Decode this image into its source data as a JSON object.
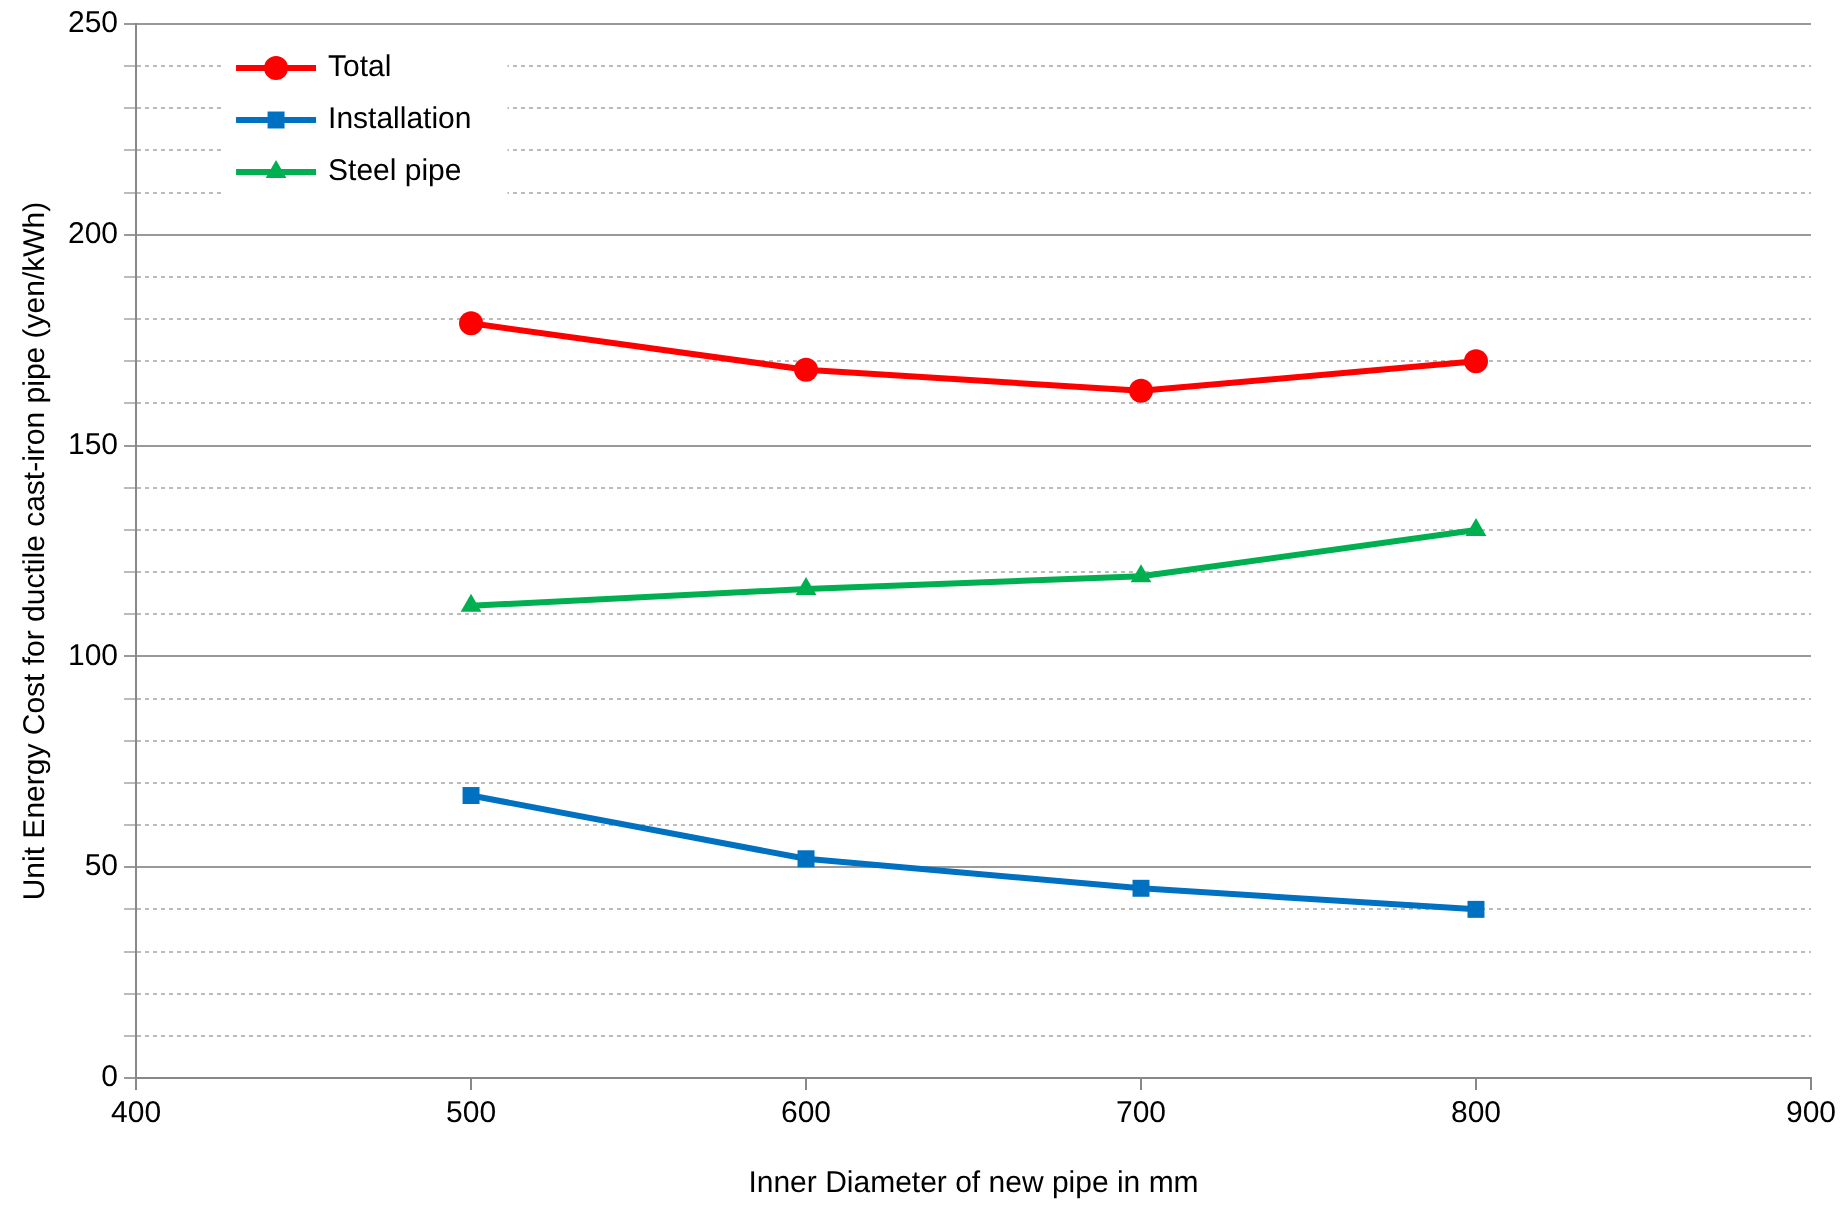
{
  "chart_data": {
    "type": "line",
    "xlabel": "Inner Diameter of new pipe in mm",
    "ylabel": "Unit Energy Cost for ductile cast-iron pipe (yen/kWh)",
    "x": [
      500,
      600,
      700,
      800
    ],
    "series": [
      {
        "name": "Total",
        "color": "#ff0000",
        "marker": "circle",
        "values": [
          179,
          168,
          163,
          170
        ]
      },
      {
        "name": "Installation",
        "color": "#0070c0",
        "marker": "square",
        "values": [
          67,
          52,
          45,
          40
        ]
      },
      {
        "name": "Steel pipe",
        "color": "#00b050",
        "marker": "triangle",
        "values": [
          112,
          116,
          119,
          130
        ]
      }
    ],
    "xlim": [
      400,
      900
    ],
    "xticks": [
      400,
      500,
      600,
      700,
      800,
      900
    ],
    "ylim": [
      0,
      250
    ],
    "yticks": [
      0,
      {
        "value": 10,
        "label": null
      },
      {
        "value": 20,
        "label": null
      },
      {
        "value": 30,
        "label": null
      },
      {
        "value": 40,
        "label": null
      },
      50,
      {
        "value": 60,
        "label": null
      },
      {
        "value": 70,
        "label": null
      },
      {
        "value": 80,
        "label": null
      },
      {
        "value": 90,
        "label": null
      },
      100,
      {
        "value": 110,
        "label": null
      },
      {
        "value": 120,
        "label": null
      },
      {
        "value": 130,
        "label": null
      },
      {
        "value": 140,
        "label": null
      },
      150,
      {
        "value": 160,
        "label": null
      },
      {
        "value": 170,
        "label": null
      },
      {
        "value": 180,
        "label": null
      },
      {
        "value": 190,
        "label": null
      },
      200,
      {
        "value": 210,
        "label": null
      },
      {
        "value": 220,
        "label": null
      },
      {
        "value": 230,
        "label": null
      },
      {
        "value": 240,
        "label": null
      },
      250
    ],
    "grid": "y",
    "legend": "top left",
    "line_style": "solid"
  }
}
